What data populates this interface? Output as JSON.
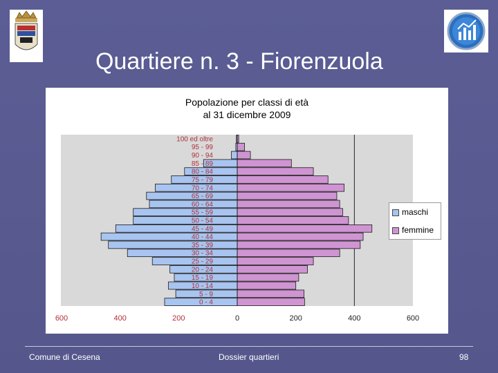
{
  "slide": {
    "title": "Quartiere n. 3 - Fiorenzuola",
    "footer_left": "Comune di Cesena",
    "footer_center": "Dossier quartieri",
    "page_number": "98"
  },
  "colors": {
    "background": "#5b5d94",
    "maschi": "#a8c4f0",
    "femmine": "#cf94d2",
    "label_color": "#b0303a"
  },
  "chart_data": {
    "type": "bar",
    "orientation": "horizontal",
    "title": "Popolazione per classi di età",
    "subtitle": "al 31 dicembre 2009",
    "categories": [
      "0 - 4",
      "5 - 9",
      "10 - 14",
      "15 - 19",
      "20 - 24",
      "25 - 29",
      "30 - 34",
      "35 - 39",
      "40 - 44",
      "45 - 49",
      "50 - 54",
      "55 - 59",
      "60 - 64",
      "65 - 69",
      "70 - 74",
      "75 - 79",
      "80 - 84",
      "85 - 89",
      "90 - 94",
      "95 - 99",
      "100 ed oltre"
    ],
    "series": [
      {
        "name": "maschi",
        "values": [
          248,
          210,
          235,
          215,
          230,
          290,
          375,
          440,
          465,
          415,
          355,
          355,
          300,
          310,
          280,
          225,
          180,
          115,
          20,
          5,
          3
        ]
      },
      {
        "name": "femmine",
        "values": [
          230,
          228,
          200,
          210,
          240,
          260,
          350,
          420,
          430,
          460,
          380,
          360,
          350,
          340,
          365,
          310,
          260,
          185,
          45,
          25,
          5
        ]
      }
    ],
    "xlim": [
      -600,
      600
    ],
    "xticks": [
      "600",
      "400",
      "200",
      "0",
      "200",
      "400",
      "600"
    ],
    "grid": false,
    "reference_line_x": 400,
    "legend_position": "right"
  }
}
